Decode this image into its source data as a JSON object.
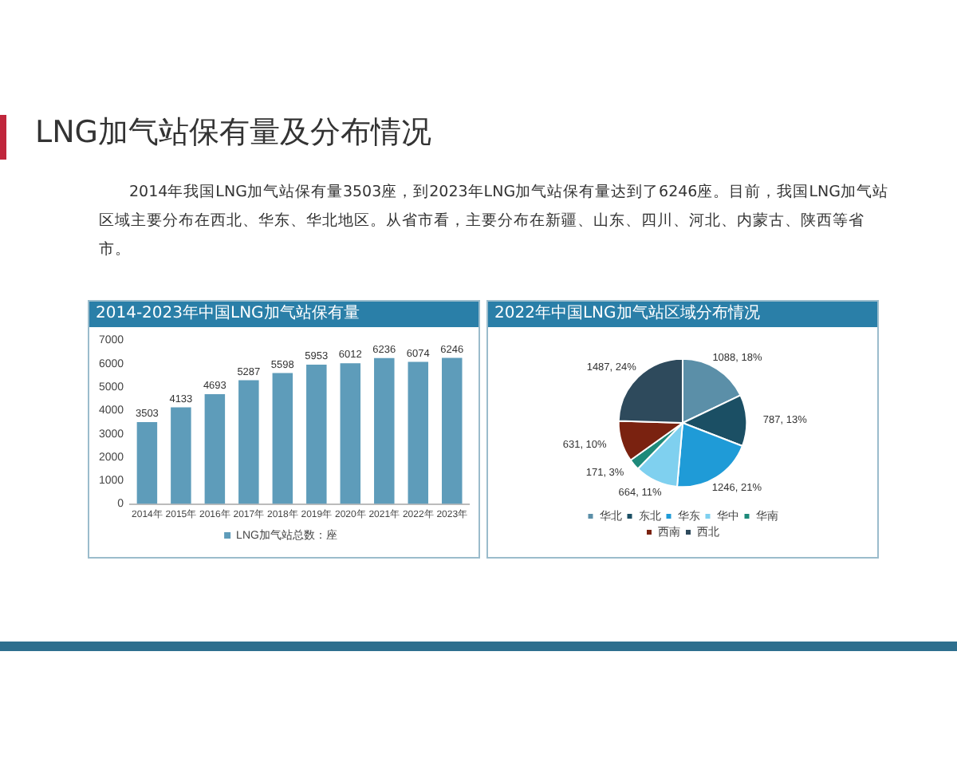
{
  "chart_data": [
    {
      "type": "other",
      "title": "LNG加气站保有量及分布情况",
      "subtitle": "2014年我国LNG加气站保有量3503座，到2023年LNG加气站保有量达到了6246座。目前，我国LNG加气站区域主要分布在西北、华东、华北地区。从省市看，主要分布在新疆、山东、四川、河北、内蒙古、陕西等省市。"
    },
    {
      "type": "bar",
      "title": "2014-2023年中国LNG加气站保有量",
      "categories": [
        "2014年",
        "2015年",
        "2016年",
        "2017年",
        "2018年",
        "2019年",
        "2020年",
        "2021年",
        "2022年",
        "2023年"
      ],
      "series": [
        {
          "name": "LNG加气站总数：座",
          "color": "#5e9cba",
          "values": [
            3503,
            4133,
            4693,
            5287,
            5598,
            5953,
            6012,
            6236,
            6074,
            6246
          ]
        }
      ],
      "ylim": [
        0,
        7000
      ],
      "yticks": [
        0,
        1000,
        2000,
        3000,
        4000,
        5000,
        6000,
        7000
      ],
      "grid": false,
      "legend": "bottom",
      "data_labels": true
    },
    {
      "type": "pie",
      "title": "2022年中国LNG加气站区域分布情况",
      "categories": [
        "华北",
        "东北",
        "华东",
        "华中",
        "华南",
        "西南",
        "西北"
      ],
      "values": [
        1088,
        787,
        1246,
        664,
        171,
        631,
        1487
      ],
      "colors": [
        "#5b8fa8",
        "#1b4f64",
        "#1f9bd7",
        "#7fd0ef",
        "#1e8a7a",
        "#7a2210",
        "#2e4a5c"
      ],
      "value_labels": [
        "1088, 18%",
        "787, 13%",
        "1246, 21%",
        "664, 11%",
        "171, 3%",
        "631, 10%",
        "1487, 24%"
      ],
      "legend": "bottom"
    }
  ]
}
